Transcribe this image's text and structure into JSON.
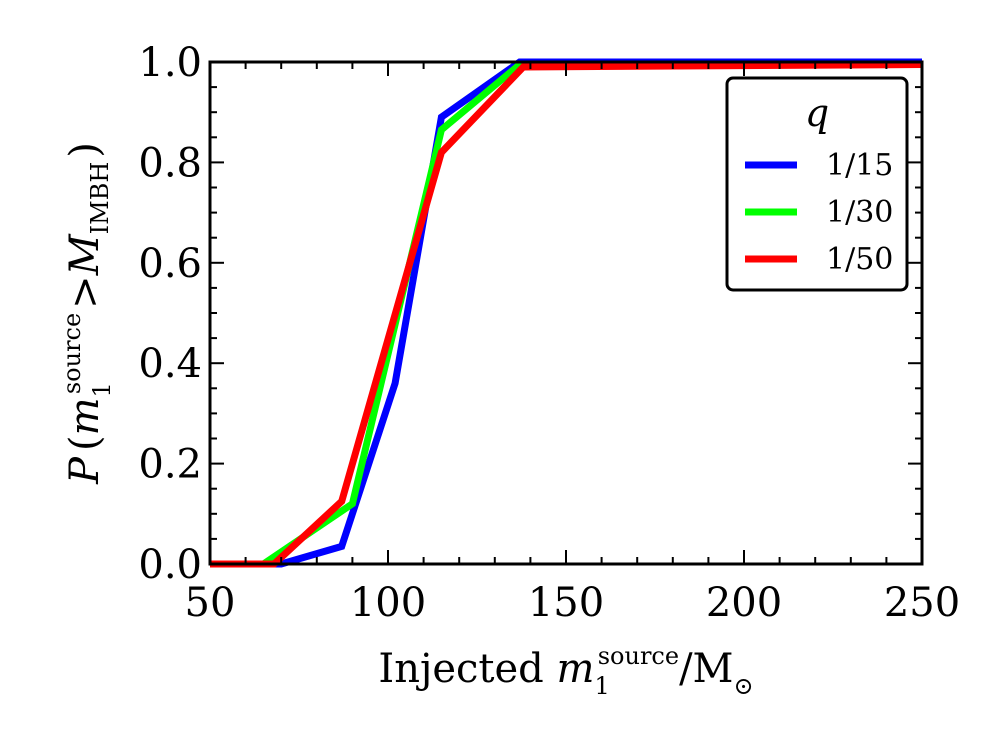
{
  "chart_data": {
    "type": "line",
    "xlabel": {
      "prefix": "Injected ",
      "var": "m",
      "sub": "1",
      "sup": "source",
      "suffix": "/M",
      "sun": "⊙"
    },
    "ylabel": {
      "func": "P",
      "open": "(",
      "var": "m",
      "sub": "1",
      "sup": "source",
      "op": ">",
      "rhs": "M",
      "rhs_sub": "IMBH",
      "close": ")"
    },
    "xlim": [
      50,
      250
    ],
    "ylim": [
      0.0,
      1.0
    ],
    "xticks": [
      50,
      100,
      150,
      200,
      250
    ],
    "xtick_labels": [
      "50",
      "100",
      "150",
      "200",
      "250"
    ],
    "yticks": [
      0.0,
      0.2,
      0.4,
      0.6,
      0.8,
      1.0
    ],
    "ytick_labels": [
      "0.0",
      "0.2",
      "0.4",
      "0.6",
      "0.8",
      "1.0"
    ],
    "legend": {
      "title": "q",
      "position": "top-right"
    },
    "series": [
      {
        "name": "1/15",
        "color": "#0000ff",
        "x": [
          50,
          70,
          87,
          102,
          115,
          137,
          250
        ],
        "y": [
          0.0,
          0.0,
          0.035,
          0.36,
          0.89,
          1.0,
          1.0
        ]
      },
      {
        "name": "1/30",
        "color": "#00ff00",
        "x": [
          50,
          65,
          90,
          115,
          137,
          250
        ],
        "y": [
          0.0,
          0.0,
          0.12,
          0.865,
          0.995,
          0.995
        ]
      },
      {
        "name": "1/50",
        "color": "#ff0000",
        "x": [
          50,
          68,
          87,
          115,
          138,
          250
        ],
        "y": [
          0.0,
          0.0,
          0.125,
          0.82,
          0.99,
          0.995
        ]
      }
    ]
  }
}
